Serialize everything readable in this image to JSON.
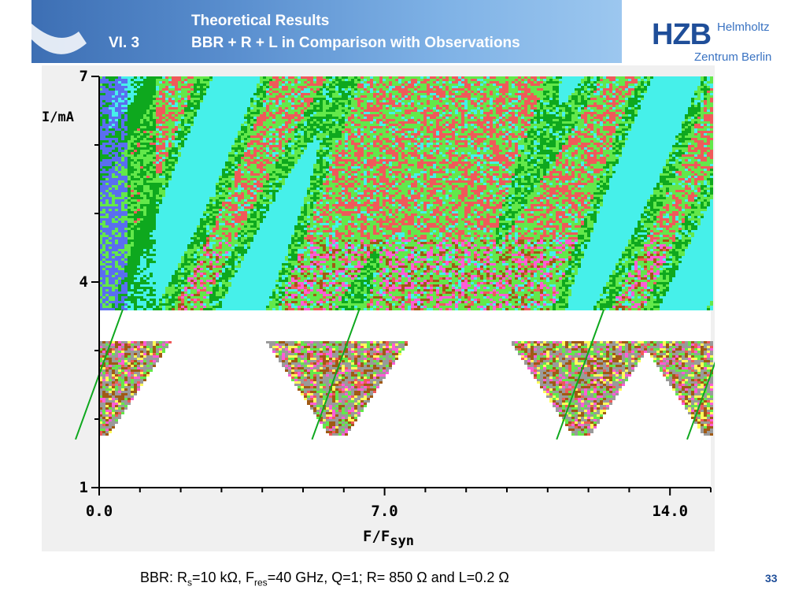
{
  "header": {
    "section": "VI.  3",
    "title_line1": "Theoretical Results",
    "title_line2": "BBR + R + L in Comparison with Observations"
  },
  "logo": {
    "abbr": "HZB",
    "line1": "Helmholtz",
    "line2": "Zentrum Berlin",
    "color": "#1f4e99"
  },
  "chart_data": {
    "type": "heatmap",
    "xlabel": "F/F",
    "xlabel_sub": "syn",
    "ylabel": "I/mA",
    "xlim": [
      0,
      15
    ],
    "ylim": [
      1,
      7
    ],
    "xticks": [
      {
        "value": 0,
        "label": "0.0"
      },
      {
        "value": 7,
        "label": "7.0"
      },
      {
        "value": 14,
        "label": "14.0"
      }
    ],
    "yticks": [
      {
        "value": 7,
        "label": "7"
      },
      {
        "value": 4,
        "label": "4"
      },
      {
        "value": 1,
        "label": "1"
      }
    ],
    "threshold_current": 3.6,
    "harmonic_centers": [
      0,
      5.8,
      11.8,
      15.0
    ],
    "colors": [
      "#ef5a5a",
      "#63e84a",
      "#0ea81e",
      "#46f0ea",
      "#a05a14",
      "#ff5cd6",
      "#5a6ef0",
      "#ffff5a",
      "#9a9a9a"
    ]
  },
  "caption": {
    "pre": "BBR: R",
    "sub1": "s",
    "mid1": "=10 kΩ, F",
    "sub2": "res",
    "post": "=40 GHz, Q=1; R= 850 Ω and L=0.2 Ω"
  },
  "page_number": "33"
}
